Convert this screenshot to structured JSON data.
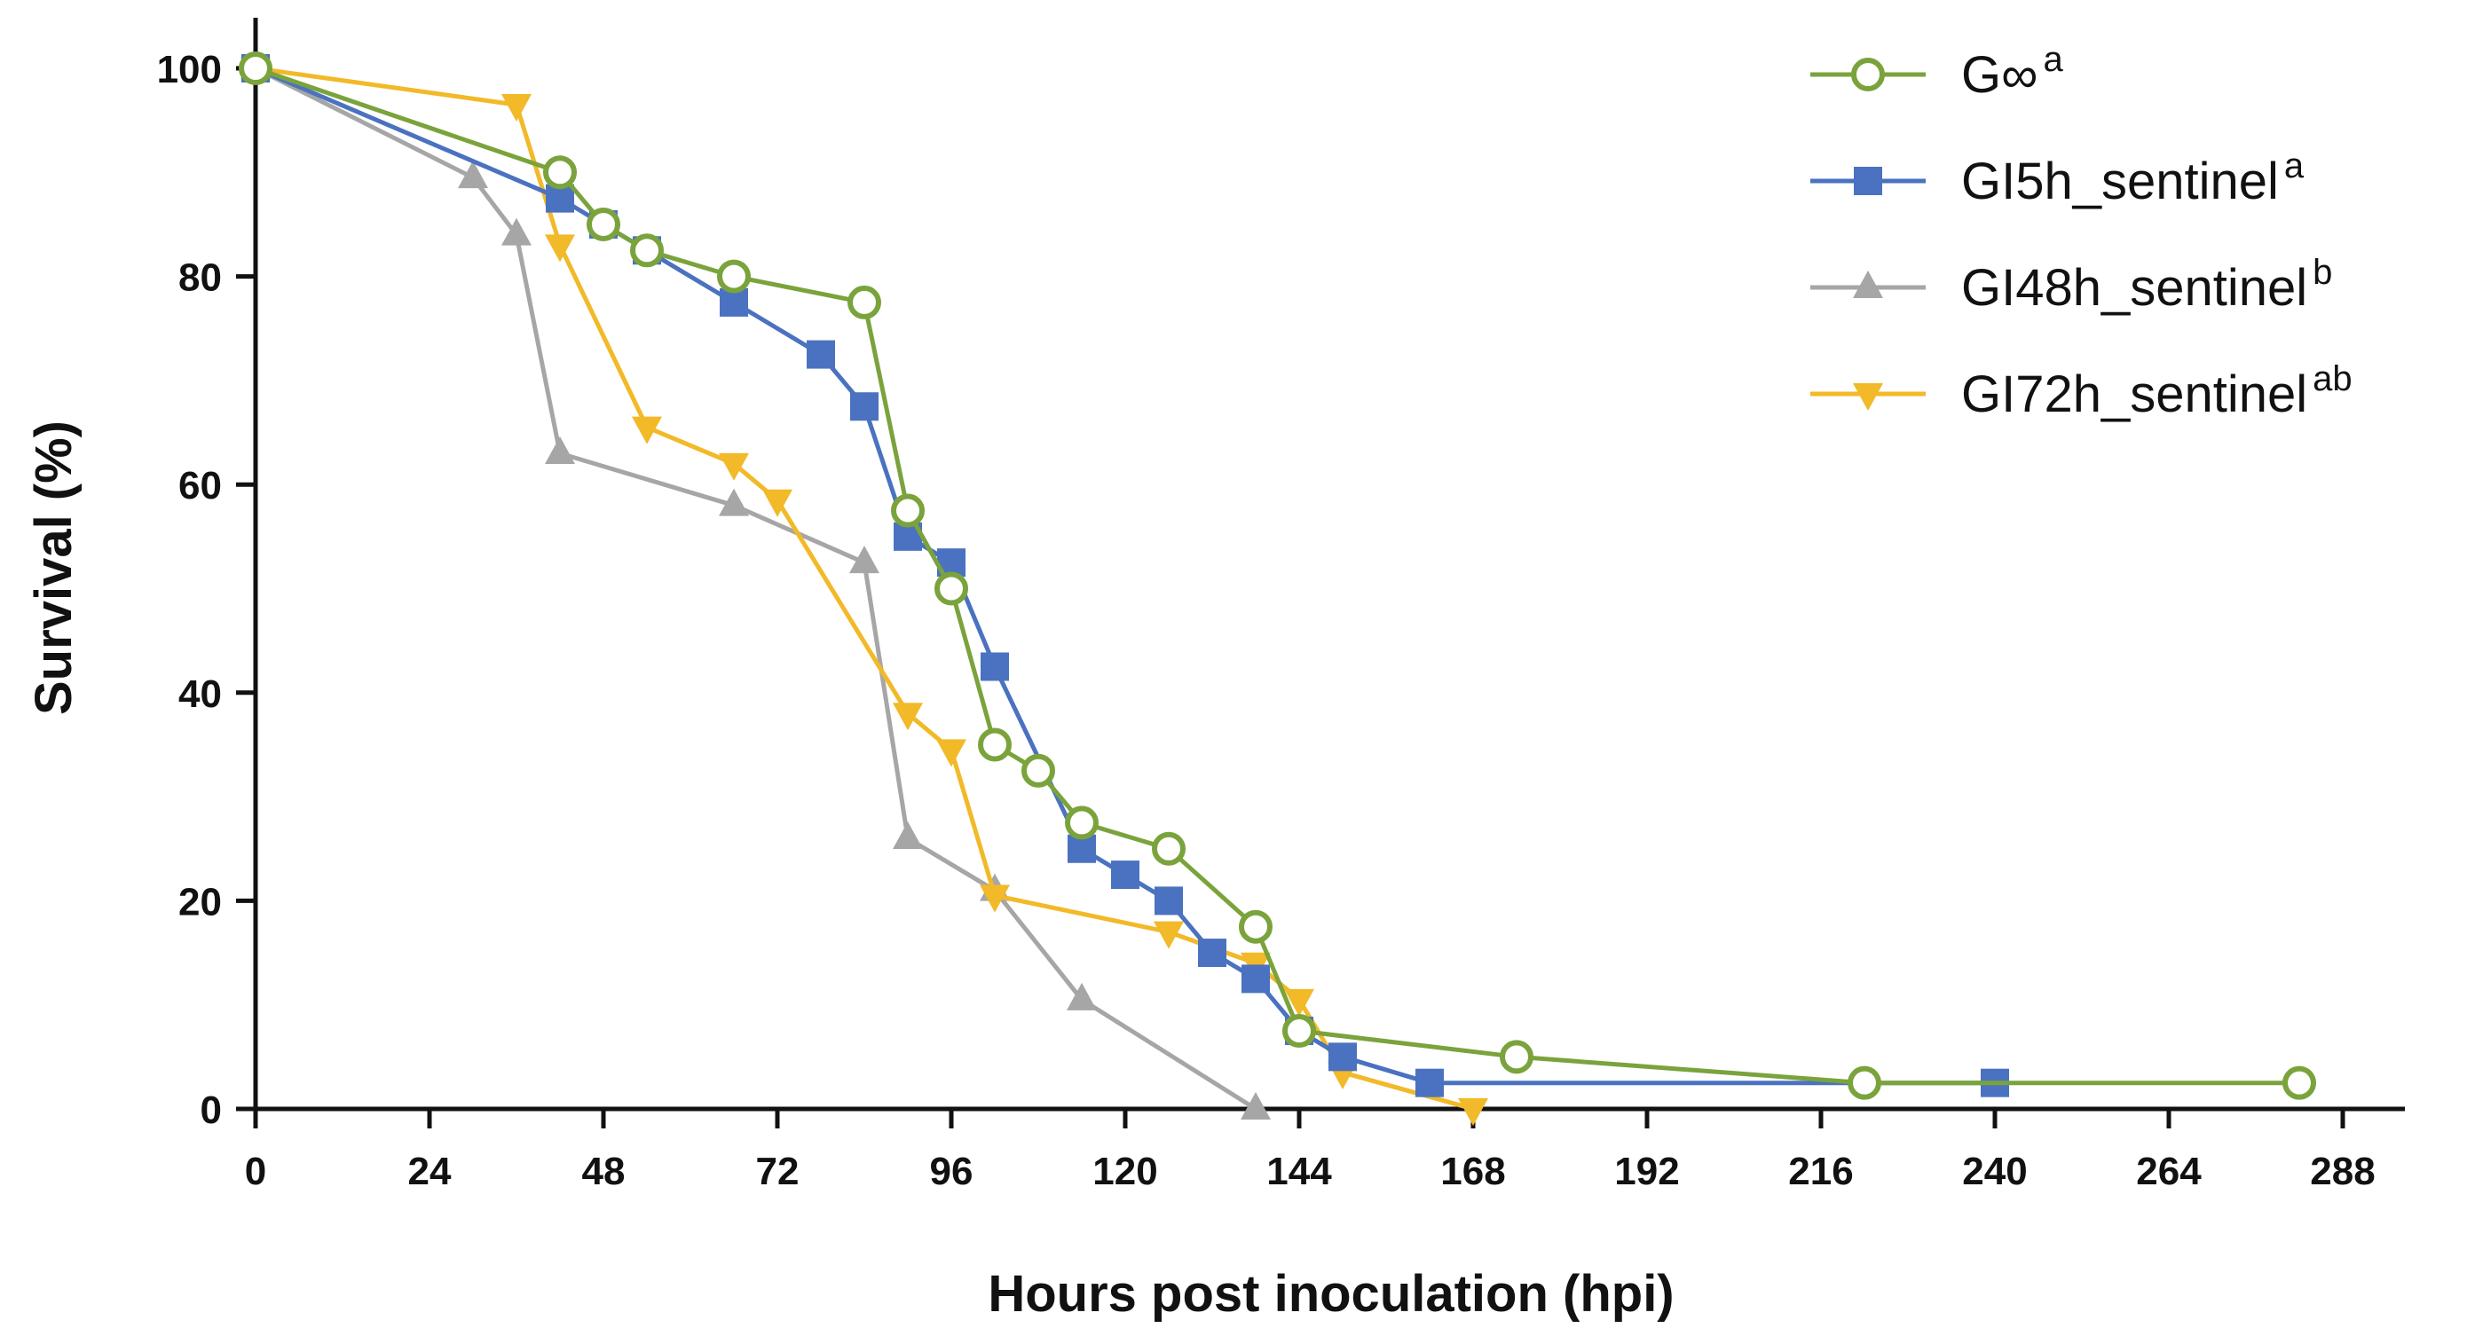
{
  "chart_data": {
    "type": "line",
    "title": "",
    "xlabel": "Hours post inoculation (hpi)",
    "ylabel": "Survival (%)",
    "xlim": [
      0,
      288
    ],
    "ylim": [
      0,
      100
    ],
    "xticks": [
      0,
      24,
      48,
      72,
      96,
      120,
      144,
      168,
      192,
      216,
      240,
      264,
      288
    ],
    "yticks": [
      0,
      20,
      40,
      60,
      80,
      100
    ],
    "legend_position": "top-right",
    "series": [
      {
        "name": "G∞",
        "sup": "a",
        "color": "#7aa33c",
        "marker": "open-circle",
        "x": [
          0,
          42,
          48,
          54,
          66,
          84,
          90,
          96,
          102,
          108,
          114,
          126,
          138,
          144,
          174,
          222,
          282
        ],
        "y": [
          100,
          90,
          85,
          82.5,
          80,
          77.5,
          57.5,
          50,
          35,
          32.5,
          27.5,
          25,
          17.5,
          7.5,
          5,
          2.5,
          2.5
        ]
      },
      {
        "name": "GI5h_sentinel",
        "sup": "a",
        "color": "#4a72c0",
        "marker": "square",
        "x": [
          0,
          42,
          48,
          54,
          66,
          78,
          84,
          90,
          96,
          102,
          114,
          120,
          126,
          132,
          138,
          144,
          150,
          162,
          240
        ],
        "y": [
          100,
          87.5,
          85,
          82.5,
          77.5,
          72.5,
          67.5,
          55,
          52.5,
          42.5,
          25,
          22.5,
          20,
          15,
          12.5,
          7.5,
          5,
          2.5,
          2.5
        ]
      },
      {
        "name": "GI48h_sentinel",
        "sup": "b",
        "color": "#a6a6a6",
        "marker": "triangle-up",
        "x": [
          0,
          30,
          36,
          42,
          66,
          84,
          90,
          102,
          114,
          138
        ],
        "y": [
          100,
          89.5,
          84,
          63,
          58,
          52.5,
          26,
          21,
          10.5,
          0
        ]
      },
      {
        "name": "GI72h_sentinel",
        "sup": "ab",
        "color": "#f2b928",
        "marker": "triangle-down",
        "x": [
          0,
          36,
          42,
          54,
          66,
          72,
          90,
          96,
          102,
          126,
          138,
          144,
          150,
          168
        ],
        "y": [
          100,
          96.5,
          83,
          65.5,
          62,
          58.5,
          38,
          34.5,
          20.5,
          17,
          14,
          10.5,
          3.5,
          0
        ]
      }
    ]
  }
}
